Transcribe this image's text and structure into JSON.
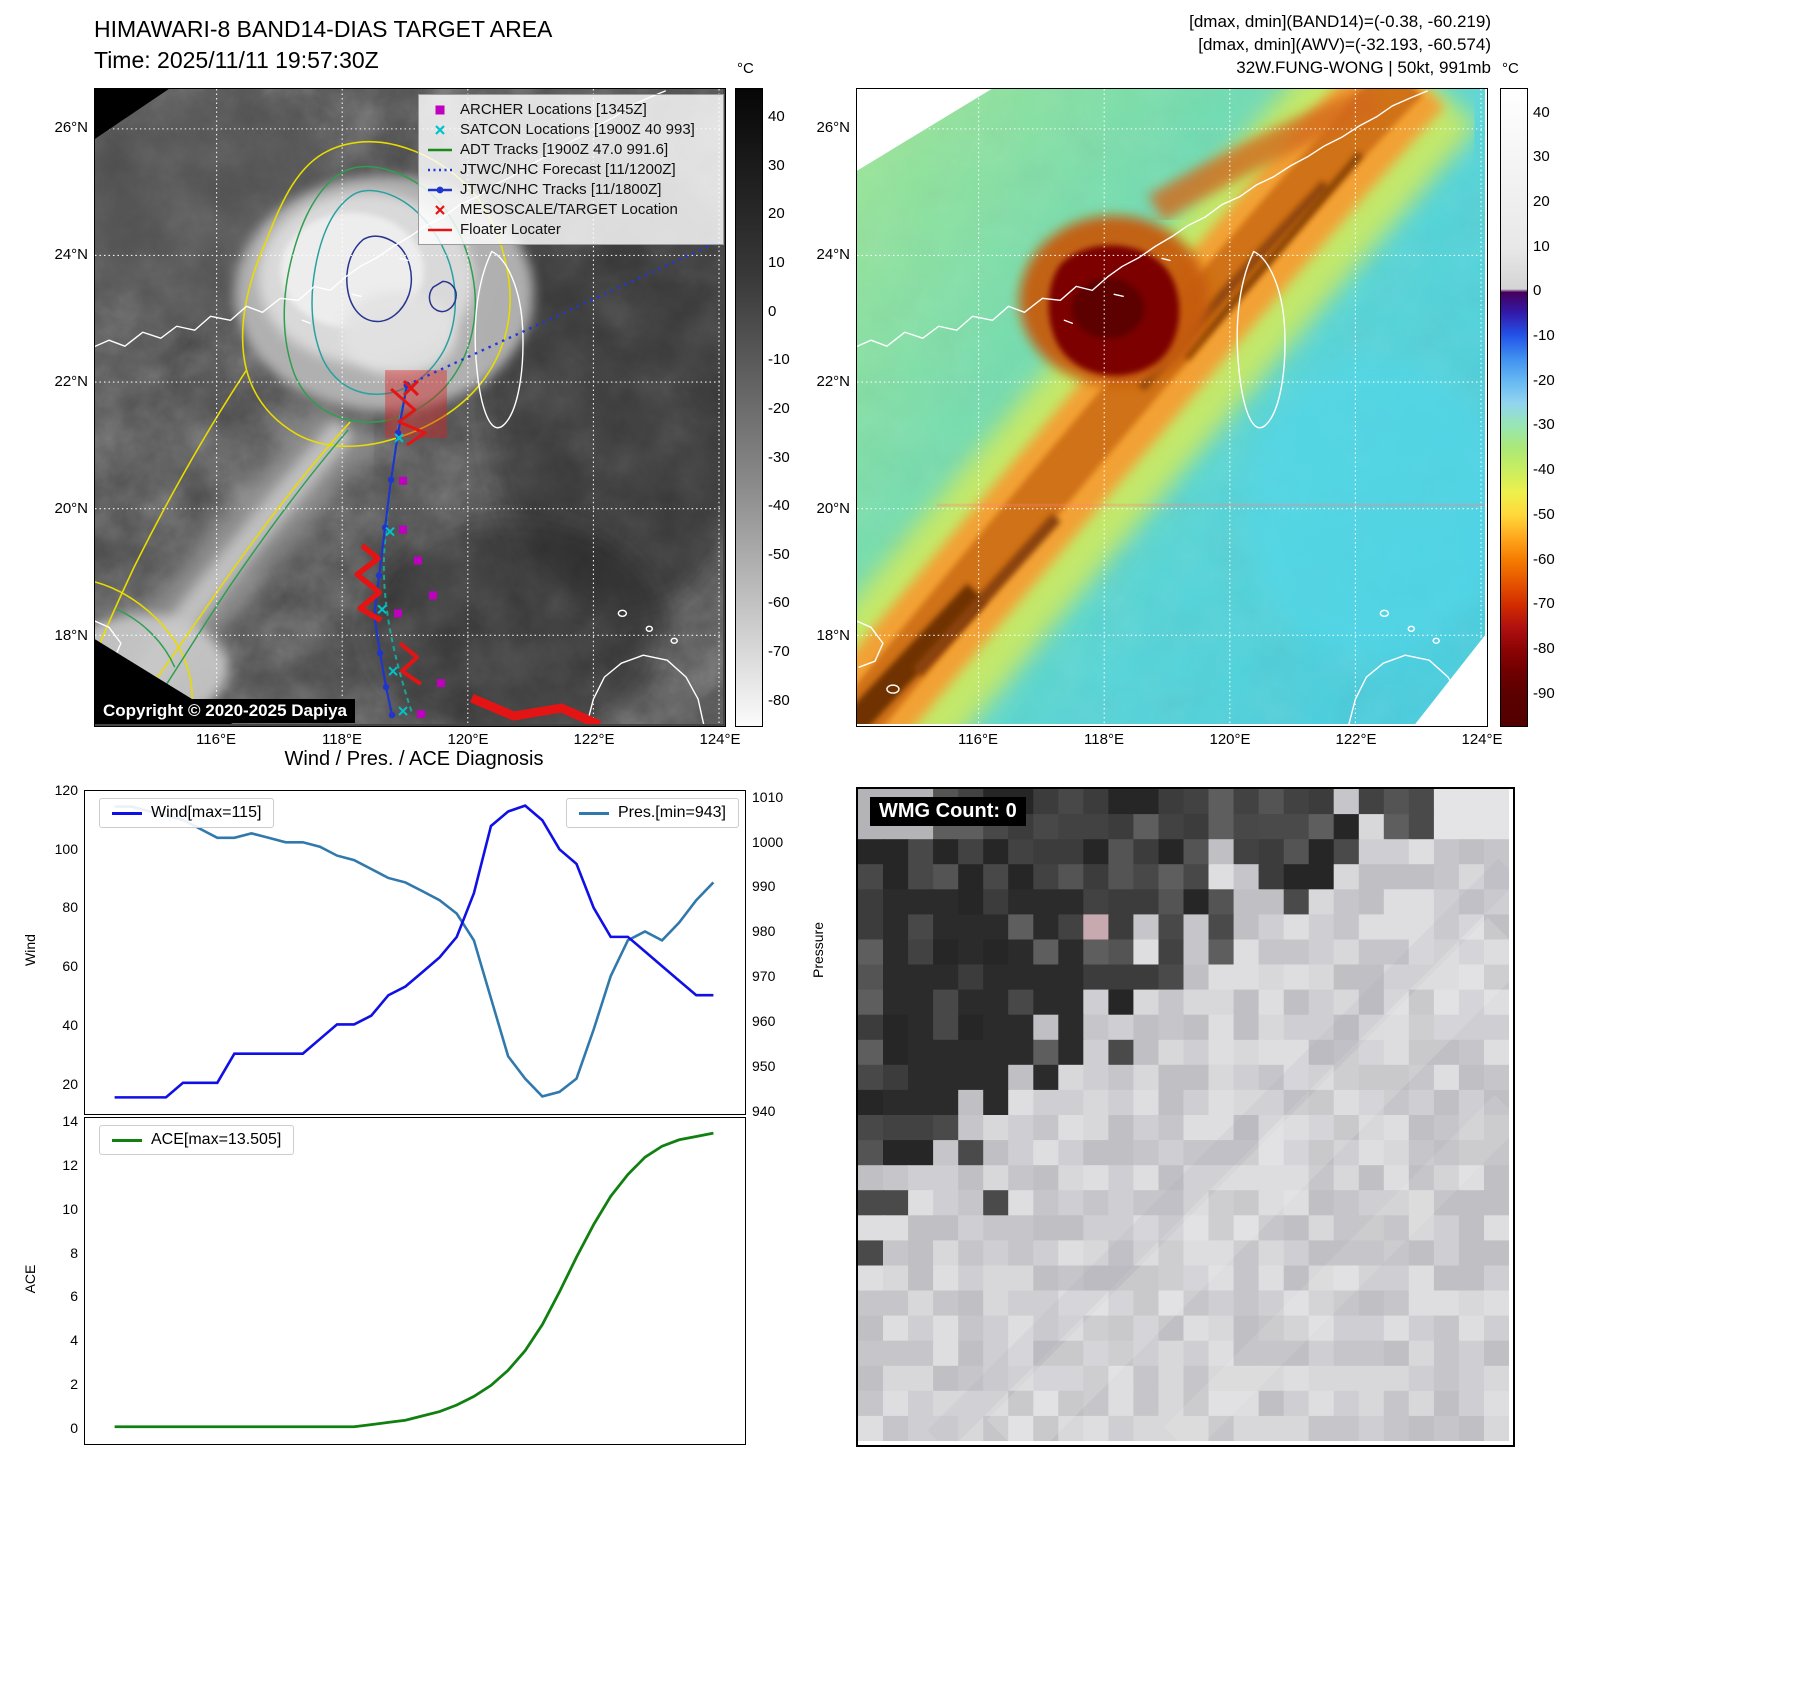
{
  "header": {
    "left_title": "HIMAWARI-8 BAND14-DIAS TARGET AREA",
    "left_subtitle": "Time: 2025/11/11 19:57:30Z",
    "right_lines": [
      "[dmax, dmin](BAND14)=(-0.38, -60.219)",
      "[dmax, dmin](AWV)=(-32.193, -60.574)",
      "32W.FUNG-WONG | 50kt, 991mb"
    ]
  },
  "maps": {
    "lat_ticks": [
      "26°N",
      "24°N",
      "22°N",
      "20°N",
      "18°N"
    ],
    "lon_ticks": [
      "116°E",
      "118°E",
      "120°E",
      "122°E",
      "124°E"
    ],
    "band14": {
      "legend": [
        {
          "marker": "square",
          "color": "#bf00bf",
          "label": "ARCHER Locations [1345Z]"
        },
        {
          "marker": "x",
          "color": "#00c4cc",
          "label": "SATCON Locations [1900Z 40 993]"
        },
        {
          "marker": "line",
          "color": "#1a8a1a",
          "label": "ADT Tracks [1900Z 47.0 991.6]"
        },
        {
          "marker": "dotted",
          "color": "#2038d8",
          "label": "JTWC/NHC Forecast [11/1200Z]"
        },
        {
          "marker": "line-dot",
          "color": "#1f35cc",
          "label": "JTWC/NHC Tracks [11/1800Z]"
        },
        {
          "marker": "x",
          "color": "#e51414",
          "label": "MESOSCALE/TARGET Location"
        },
        {
          "marker": "line",
          "color": "#e51414",
          "label": "Floater Locater"
        }
      ],
      "copyright": "Copyright © 2020-2025 Dapiya",
      "colorbar": {
        "unit": "°C",
        "ticks": [
          40,
          30,
          20,
          10,
          0,
          -10,
          -20,
          -30,
          -40,
          -50,
          -60,
          -70,
          -80
        ]
      }
    },
    "awv": {
      "colorbar": {
        "unit": "°C",
        "ticks": [
          40,
          30,
          20,
          10,
          0,
          -10,
          -20,
          -30,
          -40,
          -50,
          -60,
          -70,
          -80,
          -90
        ]
      }
    }
  },
  "wmg": {
    "label": "WMG Count: 0"
  },
  "chart_data": [
    {
      "type": "line",
      "title": "Wind / Pres. / ACE Diagnosis",
      "x": [
        0,
        1,
        2,
        3,
        4,
        5,
        6,
        7,
        8,
        9,
        10,
        11,
        12,
        13,
        14,
        15,
        16,
        17,
        18,
        19,
        20,
        21,
        22,
        23,
        24,
        25,
        26,
        27,
        28,
        29,
        30,
        31,
        32,
        33,
        34,
        35
      ],
      "series": [
        {
          "name": "Wind[max=115]",
          "yaxis": "left",
          "color": "#0f0fe6",
          "values": [
            15,
            15,
            15,
            15,
            20,
            20,
            20,
            30,
            30,
            30,
            30,
            30,
            35,
            40,
            40,
            43,
            50,
            53,
            58,
            63,
            70,
            85,
            108,
            113,
            115,
            110,
            100,
            95,
            80,
            70,
            70,
            65,
            60,
            55,
            50,
            50
          ]
        },
        {
          "name": "Pres.[min=943]",
          "yaxis": "right",
          "color": "#3179ad",
          "values": [
            1008,
            1008,
            1007,
            1006,
            1005,
            1003,
            1001,
            1001,
            1002,
            1001,
            1000,
            1000,
            999,
            997,
            996,
            994,
            992,
            991,
            989,
            987,
            984,
            978,
            965,
            952,
            947,
            943,
            944,
            947,
            958,
            970,
            978,
            980,
            978,
            982,
            987,
            991
          ]
        }
      ],
      "ylabel_left": "Wind",
      "ylabel_right": "Pressure",
      "ylim_left": [
        10,
        120
      ],
      "ylim_right": [
        939.5,
        1011.5
      ],
      "yticks_left": [
        20,
        40,
        60,
        80,
        100,
        120
      ],
      "yticks_right": [
        940,
        950,
        960,
        970,
        980,
        990,
        1000,
        1010
      ],
      "grid": false,
      "legend_position": [
        "upper left",
        "upper right"
      ]
    },
    {
      "type": "line",
      "x": [
        0,
        1,
        2,
        3,
        4,
        5,
        6,
        7,
        8,
        9,
        10,
        11,
        12,
        13,
        14,
        15,
        16,
        17,
        18,
        19,
        20,
        21,
        22,
        23,
        24,
        25,
        26,
        27,
        28,
        29,
        30,
        31,
        32,
        33,
        34,
        35
      ],
      "series": [
        {
          "name": "ACE[max=13.505]",
          "color": "#108010",
          "values": [
            0,
            0,
            0,
            0,
            0,
            0,
            0,
            0,
            0,
            0,
            0,
            0,
            0,
            0,
            0,
            0.1,
            0.2,
            0.3,
            0.5,
            0.7,
            1.0,
            1.4,
            1.9,
            2.6,
            3.5,
            4.7,
            6.2,
            7.8,
            9.3,
            10.6,
            11.6,
            12.4,
            12.9,
            13.2,
            13.35,
            13.505
          ]
        }
      ],
      "ylabel": "ACE",
      "ylim": [
        -0.7,
        14.2
      ],
      "yticks": [
        0,
        2,
        4,
        6,
        8,
        10,
        12,
        14
      ],
      "grid": false,
      "legend_position": [
        "upper left"
      ]
    }
  ]
}
